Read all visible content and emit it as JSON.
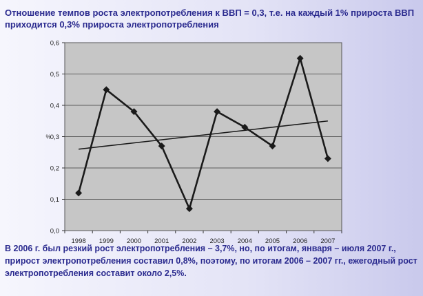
{
  "slide": {
    "title": "Отношение темпов роста электропотребления к ВВП = 0,3, т.е. на каждый 1% прироста ВВП приходится 0,3% прироста электропотребления",
    "note": "В 2006 г. был резкий рост электропотребления – 3,7%, но, по итогам, января – июля 2007 г., прирост электропотребления составил 0,8%, поэтому, по итогам 2006 – 2007 гг., ежегодный рост электропотребления  составит около 2,5%."
  },
  "colors": {
    "plot_bg": "#c6c6c6",
    "series": "#1a1a1a",
    "trend": "#1a1a1a",
    "text": "#2b2b8f"
  },
  "chart_data": {
    "type": "line",
    "title": "",
    "xlabel": "",
    "ylabel": "%",
    "categories": [
      "1998",
      "1999",
      "2000",
      "2001",
      "2002",
      "2003",
      "2004",
      "2005",
      "2006",
      "2007"
    ],
    "series": [
      {
        "values": [
          0.12,
          0.45,
          0.38,
          0.27,
          0.07,
          0.38,
          0.33,
          0.27,
          0.55,
          0.23
        ],
        "marker": "diamond"
      }
    ],
    "trendline": {
      "start": 0.26,
      "end": 0.35
    },
    "ylim": [
      0,
      0.6
    ],
    "yticks": [
      0,
      0.1,
      0.2,
      0.3,
      0.4,
      0.5,
      0.6
    ],
    "ytick_labels": [
      "0,0",
      "0,1",
      "0,2",
      "0,3",
      "0,4",
      "0,5",
      "0,6"
    ],
    "grid": true,
    "legend": "none"
  }
}
